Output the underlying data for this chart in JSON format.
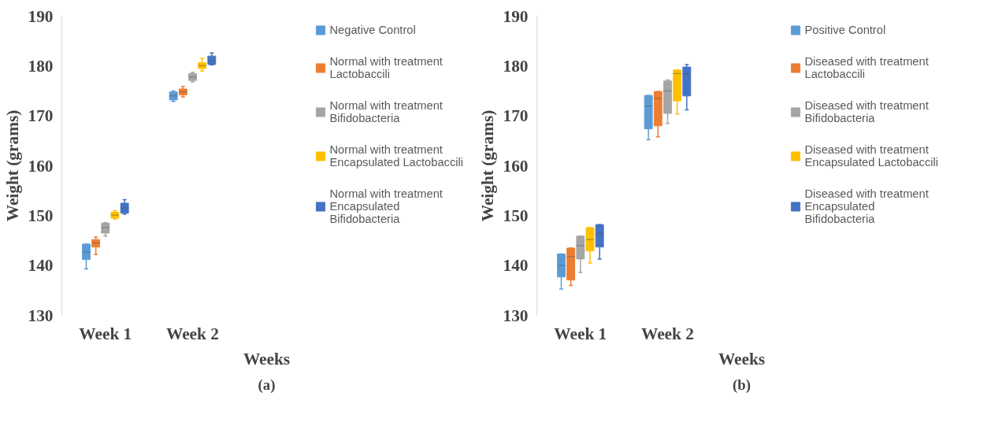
{
  "chart_data": [
    {
      "type": "box",
      "categories": [
        "Week 1",
        "Week 2"
      ],
      "xlabel": "Weeks",
      "ylabel": "Weight (grams)",
      "ylim": [
        130,
        190
      ],
      "yticks": [
        130,
        140,
        150,
        160,
        170,
        180,
        190
      ],
      "grid": false,
      "legend": "right",
      "annotations": [
        "(a)"
      ],
      "series": [
        {
          "name": "Negative Control",
          "color": "#5b9bd5",
          "boxes": [
            {
              "low": 139.3,
              "q1": 141.2,
              "median": 142.7,
              "q3": 144.3,
              "high": 144.3
            },
            {
              "low": 172.9,
              "q1": 173.2,
              "median": 174.0,
              "q3": 174.8,
              "high": 175.0
            }
          ]
        },
        {
          "name": "Normal with treatment Lactobaccili",
          "color": "#ed7d31",
          "boxes": [
            {
              "low": 142.2,
              "q1": 143.7,
              "median": 144.5,
              "q3": 145.2,
              "high": 145.7
            },
            {
              "low": 173.8,
              "q1": 174.2,
              "median": 174.8,
              "q3": 175.4,
              "high": 175.9
            }
          ]
        },
        {
          "name": "Normal with treatment Bifidobacteria",
          "color": "#a5a5a5",
          "boxes": [
            {
              "low": 145.9,
              "q1": 146.5,
              "median": 147.6,
              "q3": 148.5,
              "high": 148.6
            },
            {
              "low": 176.8,
              "q1": 177.1,
              "median": 177.8,
              "q3": 178.5,
              "high": 178.7
            }
          ]
        },
        {
          "name": "Normal with treatment Encapsulated Lactobaccili",
          "color": "#ffc000",
          "boxes": [
            {
              "low": 149.3,
              "q1": 149.5,
              "median": 150.1,
              "q3": 150.7,
              "high": 151.0
            },
            {
              "low": 179.0,
              "q1": 179.5,
              "median": 180.1,
              "q3": 180.7,
              "high": 181.5
            }
          ]
        },
        {
          "name": "Normal with treatment Encapsulated Bifidobacteria",
          "color": "#4472c4",
          "boxes": [
            {
              "low": 150.3,
              "q1": 150.5,
              "median": 151.5,
              "q3": 152.5,
              "high": 153.2
            },
            {
              "low": 180.2,
              "q1": 180.3,
              "median": 181.0,
              "q3": 182.0,
              "high": 182.6
            }
          ]
        }
      ]
    },
    {
      "type": "box",
      "categories": [
        "Week 1",
        "Week 2"
      ],
      "xlabel": "Weeks",
      "ylabel": "Weight (grams)",
      "ylim": [
        130,
        190
      ],
      "yticks": [
        130,
        140,
        150,
        160,
        170,
        180,
        190
      ],
      "grid": false,
      "legend": "right",
      "annotations": [
        "(b)"
      ],
      "series": [
        {
          "name": "Positive Control",
          "color": "#5b9bd5",
          "boxes": [
            {
              "low": 135.3,
              "q1": 137.7,
              "median": 140.0,
              "q3": 142.3,
              "high": 142.3
            },
            {
              "low": 165.2,
              "q1": 167.4,
              "median": 172.0,
              "q3": 174.1,
              "high": 174.1
            }
          ]
        },
        {
          "name": "Diseased with treatment Lactobaccili",
          "color": "#ed7d31",
          "boxes": [
            {
              "low": 136.0,
              "q1": 137.1,
              "median": 141.8,
              "q3": 143.5,
              "high": 143.5
            },
            {
              "low": 165.8,
              "q1": 168.0,
              "median": 173.5,
              "q3": 174.9,
              "high": 174.9
            }
          ]
        },
        {
          "name": "Diseased with treatment Bifidobacteria",
          "color": "#a5a5a5",
          "boxes": [
            {
              "low": 138.6,
              "q1": 141.3,
              "median": 144.0,
              "q3": 145.9,
              "high": 145.9
            },
            {
              "low": 168.5,
              "q1": 170.5,
              "median": 175.0,
              "q3": 177.0,
              "high": 177.2
            }
          ]
        },
        {
          "name": "Diseased with treatment Encapsulated Lactobaccili",
          "color": "#ffc000",
          "boxes": [
            {
              "low": 140.5,
              "q1": 142.9,
              "median": 145.2,
              "q3": 147.6,
              "high": 147.6
            },
            {
              "low": 170.4,
              "q1": 173.0,
              "median": 178.5,
              "q3": 179.2,
              "high": 179.2
            }
          ]
        },
        {
          "name": "Diseased with treatment Encapsulated Bifidobacteria",
          "color": "#4472c4",
          "boxes": [
            {
              "low": 141.3,
              "q1": 143.7,
              "median": 146.5,
              "q3": 148.2,
              "high": 148.2
            },
            {
              "low": 171.2,
              "q1": 174.0,
              "median": 178.4,
              "q3": 179.8,
              "high": 180.3
            }
          ]
        }
      ]
    }
  ]
}
